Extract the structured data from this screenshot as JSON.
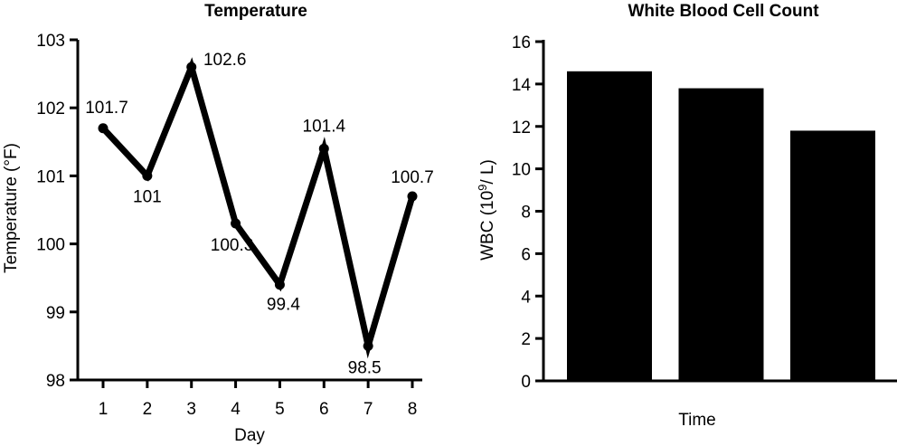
{
  "chart_data": [
    {
      "type": "line",
      "title": "Temperature",
      "xlabel": "Day",
      "ylabel": "Temperature (°F)",
      "x": [
        1,
        2,
        3,
        4,
        5,
        6,
        7,
        8
      ],
      "xlim": [
        0.5,
        8.5
      ],
      "ylim": [
        98,
        103
      ],
      "yticks": [
        98,
        99,
        100,
        101,
        102,
        103
      ],
      "series": [
        {
          "values": [
            101.7,
            101,
            102.6,
            100.3,
            99.4,
            101.4,
            98.5,
            100.7
          ]
        }
      ],
      "data_labels": [
        "101.7",
        "101",
        "102.6",
        "100.3",
        "99.4",
        "101.4",
        "98.5",
        "100.7"
      ],
      "grid": false,
      "color": "#000000"
    },
    {
      "type": "bar",
      "title": "White Blood Cell Count",
      "xlabel": "Time",
      "ylabel": {
        "prefix": "WBC (10",
        "superscript": "9",
        "suffix": "/ L)"
      },
      "categories": [
        "",
        "",
        ""
      ],
      "values": [
        14.6,
        13.8,
        11.8
      ],
      "ylim": [
        0,
        16
      ],
      "yticks": [
        0,
        2,
        4,
        6,
        8,
        10,
        12,
        14,
        16
      ],
      "grid": false,
      "color": "#000000"
    }
  ]
}
